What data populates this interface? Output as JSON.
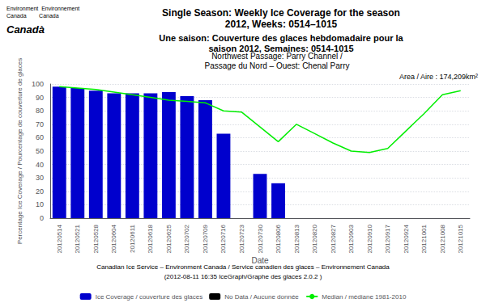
{
  "chart_data": {
    "type": "bar",
    "title": "Single Season: Weekly Ice Coverage for the season\n2012, Weeks: 0514–1015",
    "subtitle": "Une saison: Couverture des glaces hebdomadaire pour la\nsaison 2012, Semaines: 0514-1015",
    "annotations": [
      "Northwest Passage: Parry Channel /\nPassage du Nord – Ouest: Chenal Parry",
      "Area / Aire : 174,209km²",
      "Canadian Ice Service – Environment Canada / Service canadien des glaces – Environnement Canada",
      "(2012-08-11 16:35 IceGraph/Graphe des glaces 2.0.2 )",
      "Environment  Environnement\nCanada        Canada",
      "Canadà"
    ],
    "xlabel": "Date",
    "ylabel": "Percentage Ice Coverage / Pourcentage de couverture de glaces",
    "categories": [
      "20120514",
      "20120521",
      "20120528",
      "20120604",
      "20120611",
      "20120618",
      "20120625",
      "20120702",
      "20120709",
      "20120716",
      "20120723",
      "20120730",
      "20120806",
      "20120813",
      "20120820",
      "20120827",
      "20120903",
      "20120910",
      "20120917",
      "20120924",
      "20121001",
      "20121008",
      "20121015"
    ],
    "series": [
      {
        "name": "Ice Coverage / couverture des glaces",
        "type": "bar",
        "color": "#0000CD",
        "values": [
          98,
          97,
          95,
          93,
          93,
          93,
          94,
          91,
          88,
          63,
          null,
          33,
          26,
          null,
          null,
          null,
          null,
          null,
          null,
          null,
          null,
          null,
          null
        ]
      },
      {
        "name": "No Data / Aucune donnée",
        "type": "bar",
        "color": "#000000",
        "values": [
          null,
          null,
          null,
          null,
          null,
          null,
          null,
          null,
          null,
          null,
          null,
          null,
          null,
          null,
          null,
          null,
          null,
          null,
          null,
          null,
          null,
          null,
          null
        ]
      },
      {
        "name": "Median / médiane 1981-2010",
        "type": "line",
        "color": "#00EE00",
        "values": [
          98,
          97,
          96,
          94,
          92,
          90,
          88,
          87,
          86,
          80,
          79,
          68,
          57,
          70,
          63,
          56,
          50,
          49,
          52,
          65,
          78,
          92,
          95
        ]
      }
    ],
    "ylim": [
      0,
      100
    ],
    "yticks": [
      0,
      10,
      20,
      30,
      40,
      50,
      60,
      70,
      80,
      90,
      100
    ],
    "grid": true,
    "legend": "bottom"
  }
}
